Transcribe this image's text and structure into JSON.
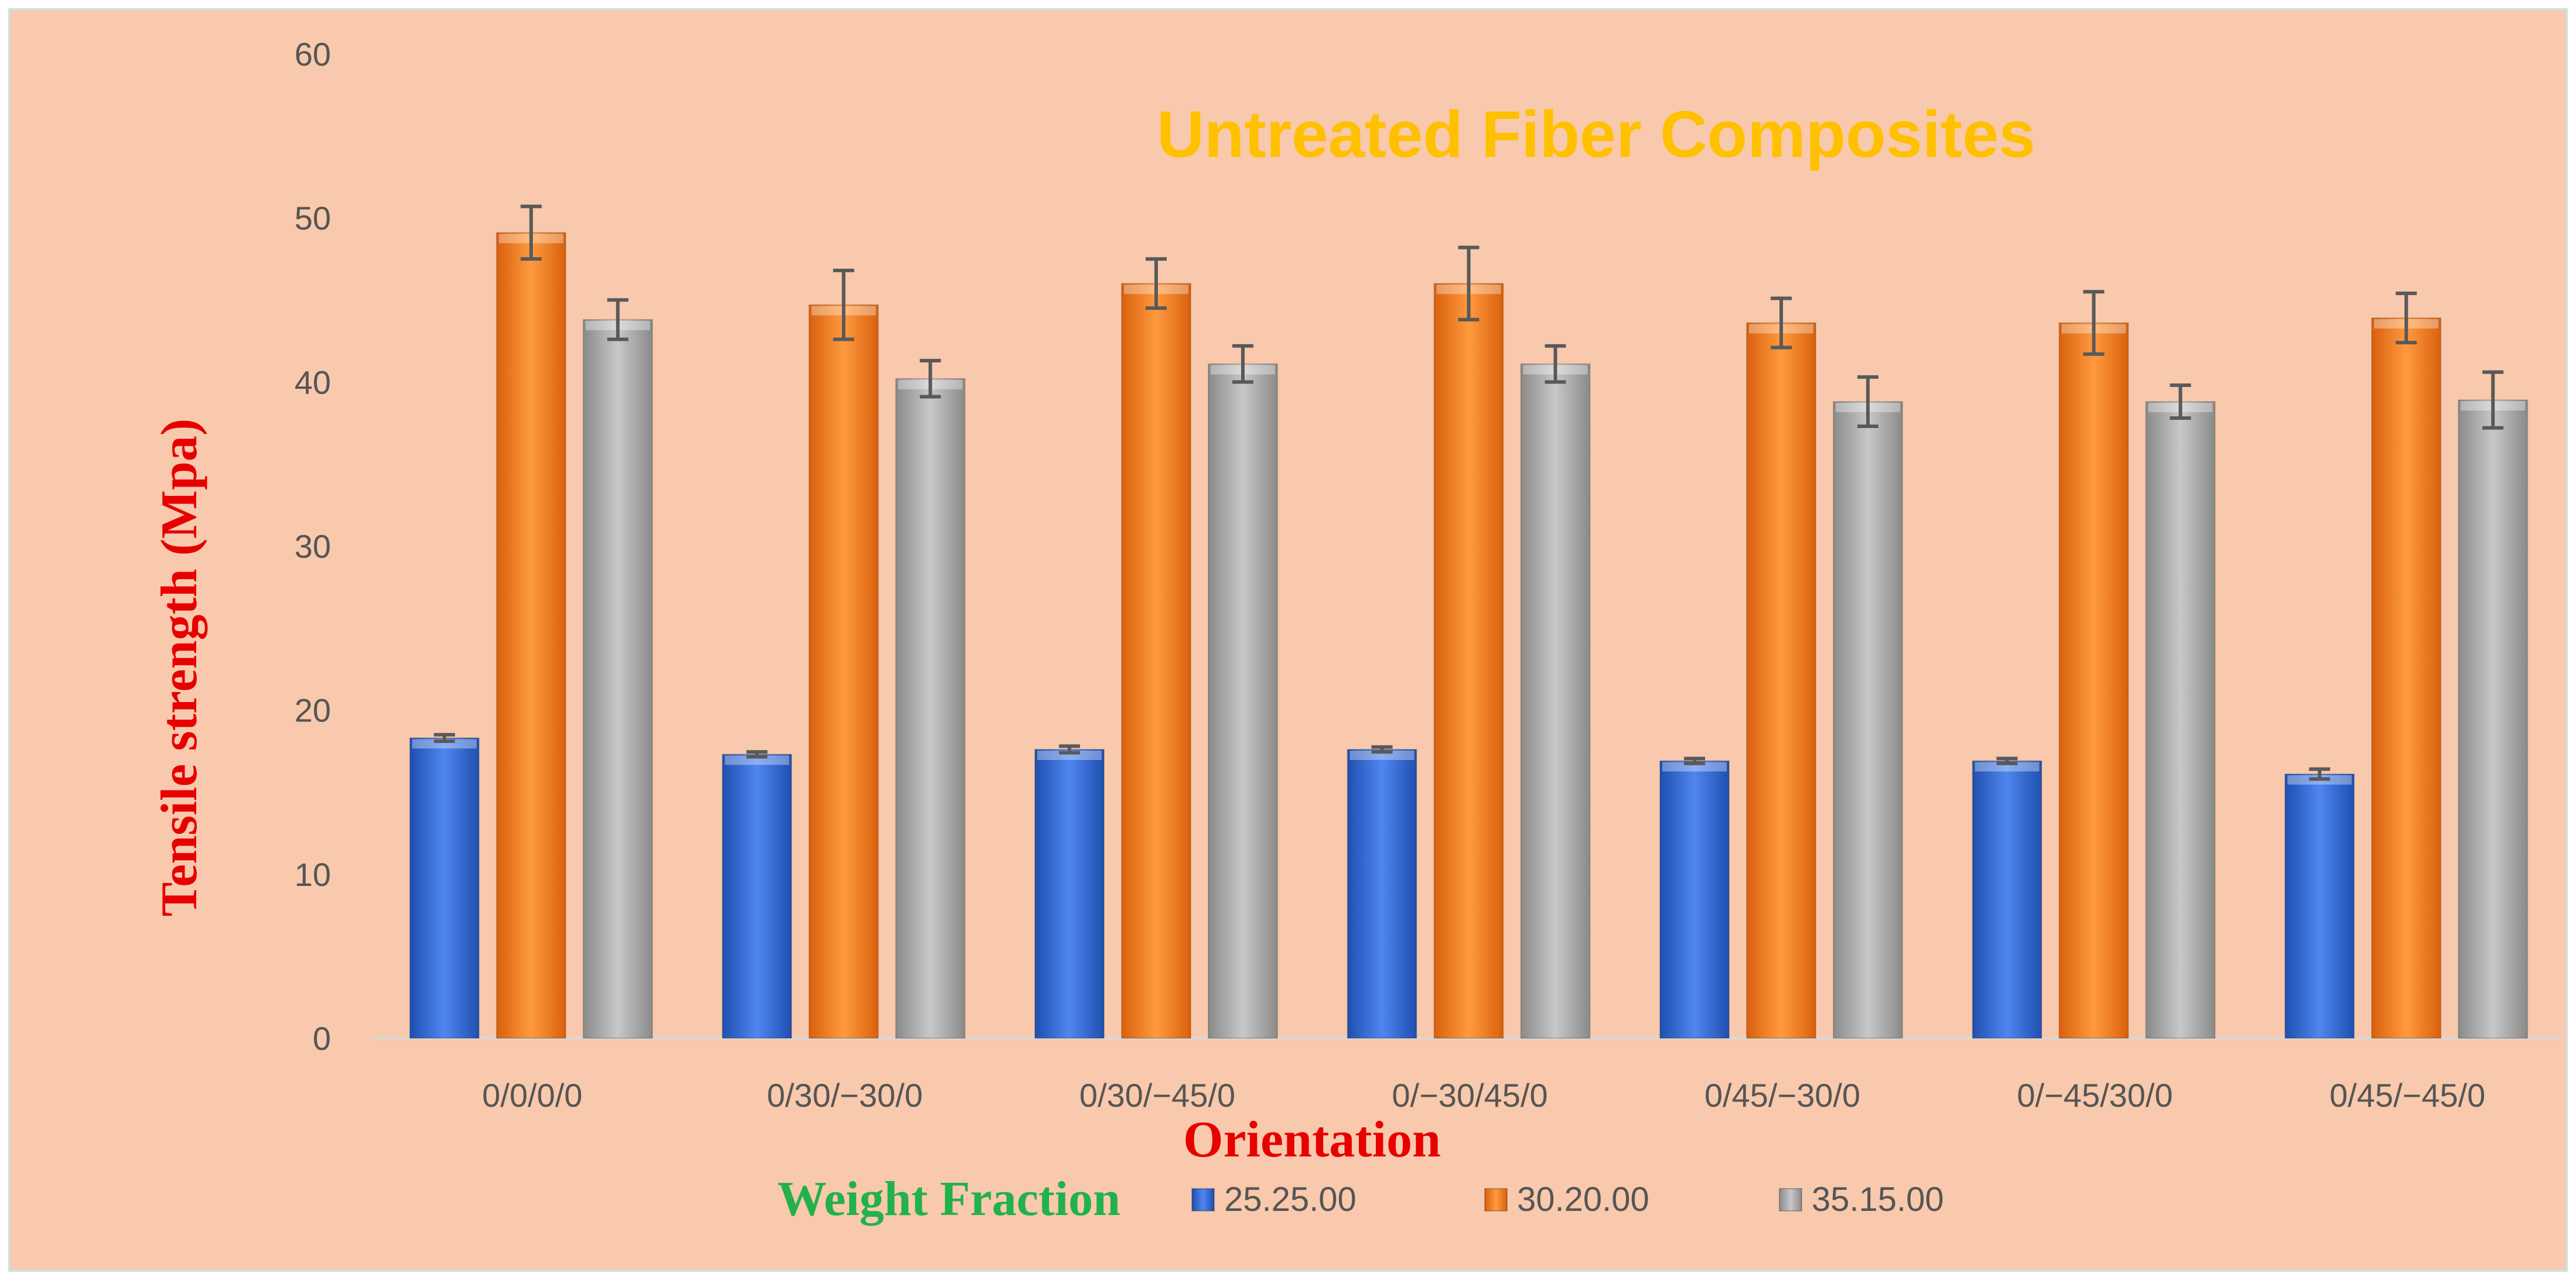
{
  "chart_data": {
    "type": "bar",
    "title": "Untreated Fiber Composites",
    "xlabel": "Orientation",
    "ylabel": "Tensile strength (Mpa)",
    "ylim": [
      0,
      60
    ],
    "yticks": [
      0,
      10,
      20,
      30,
      40,
      50,
      60
    ],
    "grid": false,
    "legend_title": "Weight Fraction",
    "legend_position": "bottom",
    "categories": [
      "0/0/0/0",
      "0/30/−30/0",
      "0/30/−45/0",
      "0/−30/45/0",
      "0/45/−30/0",
      "0/−45/30/0",
      "0/45/−45/0"
    ],
    "series": [
      {
        "name": "25.25.00",
        "color": "#2f5fcf",
        "values": [
          18.3,
          17.3,
          17.6,
          17.6,
          16.9,
          16.9,
          16.1
        ],
        "errors": [
          0.2,
          0.15,
          0.2,
          0.15,
          0.15,
          0.15,
          0.3
        ]
      },
      {
        "name": "30.20.00",
        "color": "#f07a1a",
        "values": [
          49.1,
          44.7,
          46.0,
          46.0,
          43.6,
          43.6,
          43.9
        ],
        "errors": [
          1.6,
          2.1,
          1.5,
          2.2,
          1.5,
          1.9,
          1.5
        ]
      },
      {
        "name": "35.15.00",
        "color": "#a8a8a8",
        "values": [
          43.8,
          40.2,
          41.1,
          41.1,
          38.8,
          38.8,
          38.9
        ],
        "errors": [
          1.2,
          1.1,
          1.1,
          1.1,
          1.5,
          1.0,
          1.7
        ]
      }
    ]
  }
}
